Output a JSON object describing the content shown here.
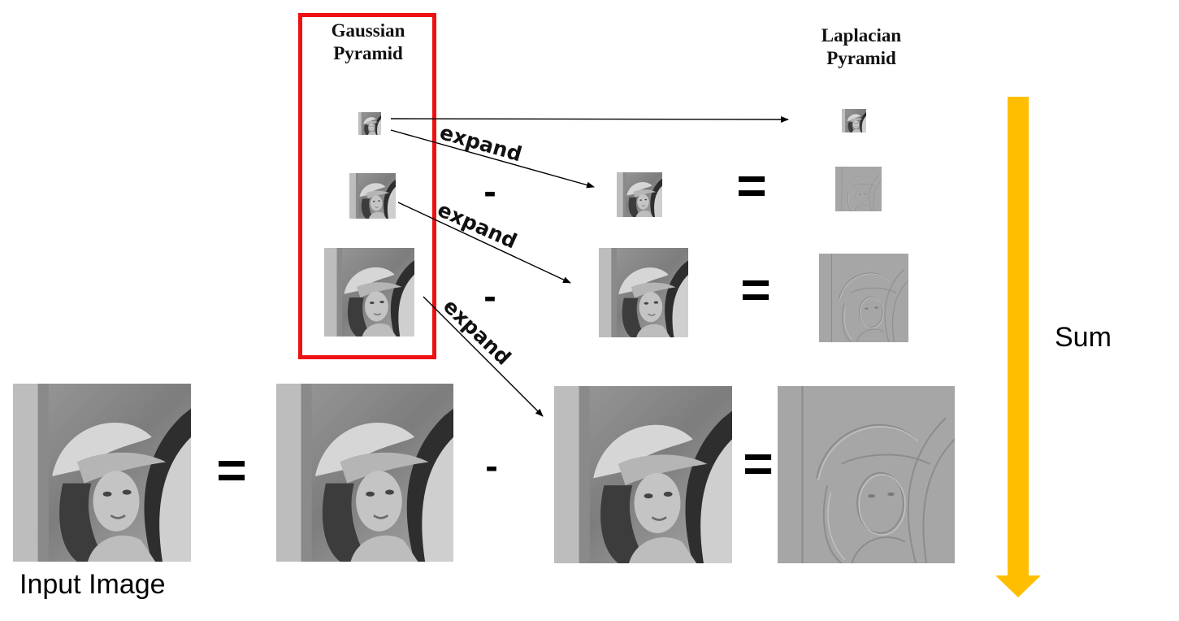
{
  "labels": {
    "gaussian_title": "Gaussian\nPyramid",
    "laplacian_title": "Laplacian\nPyramid",
    "input_caption": "Input Image",
    "sum_label": "Sum",
    "expand": "expand",
    "minus": "-",
    "equals": "="
  },
  "colors": {
    "highlight_box": "#ee1111",
    "sum_arrow": "#ffbf00"
  },
  "images": {
    "gaussian": [
      "gaussian-level-3",
      "gaussian-level-2",
      "gaussian-level-1"
    ],
    "laplacian": [
      "laplacian-level-3",
      "laplacian-level-2",
      "laplacian-level-1",
      "laplacian-level-0"
    ],
    "expanded": [
      "expanded-level-2",
      "expanded-level-1",
      "expanded-level-0"
    ],
    "input": [
      "input-image",
      "gaussian-level-0"
    ]
  }
}
